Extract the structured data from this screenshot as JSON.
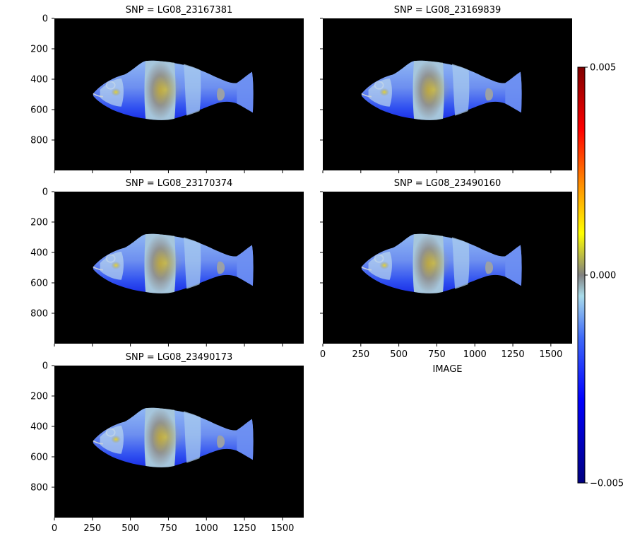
{
  "chart_data": {
    "type": "heatmap",
    "figure_rendering": "facet grid of fish-image heatmaps, shared axes, 2 columns",
    "panels": [
      {
        "title": "SNP = LG08_23167381"
      },
      {
        "title": "SNP = LG08_23169839"
      },
      {
        "title": "SNP = LG08_23170374"
      },
      {
        "title": "SNP = LG08_23490160"
      },
      {
        "title": "SNP = LG08_23490173"
      }
    ],
    "x_axis": {
      "label": "IMAGE",
      "range": [
        0,
        1640
      ],
      "ticks": [
        0,
        250,
        500,
        750,
        1000,
        1250,
        1500
      ]
    },
    "y_axis": {
      "label": "",
      "range": [
        1000,
        0
      ],
      "ticks": [
        0,
        200,
        400,
        600,
        800
      ]
    },
    "colorbar": {
      "range": [
        -0.005,
        0.005
      ],
      "ticks": [
        {
          "value": -0.005,
          "label": "−0.005"
        },
        {
          "value": 0.0,
          "label": "0.000"
        },
        {
          "value": 0.005,
          "label": "0.005"
        }
      ],
      "colors": [
        "#00007f",
        "#0000ff",
        "#3f6af8",
        "#a9dcea",
        "#808080",
        "#ffff00",
        "#ff8c00",
        "#ff0000",
        "#7f0000"
      ]
    },
    "background_color": "#000000",
    "heat_pattern": "values mostly negative (blue) across the fish body; near-zero grey in the mid-body and head regions with small slightly positive yellow spots",
    "grid": false
  }
}
